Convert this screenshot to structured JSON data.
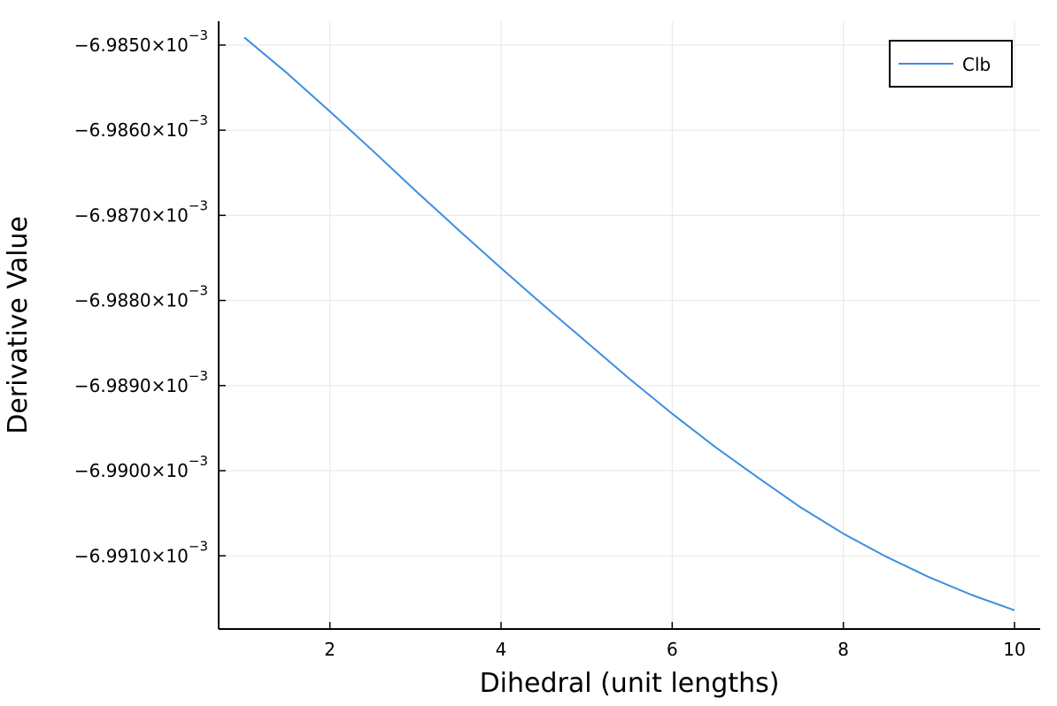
{
  "chart_data": {
    "type": "line",
    "title": "",
    "xlabel": "Dihedral (unit lengths)",
    "ylabel": "Derivative Value",
    "xlim": [
      0.7,
      10.3
    ],
    "ylim": [
      -6.99186,
      -6.98472
    ],
    "y_scale_exponent": -3,
    "xticks": [
      {
        "value": 2,
        "label": "2"
      },
      {
        "value": 4,
        "label": "4"
      },
      {
        "value": 6,
        "label": "6"
      },
      {
        "value": 8,
        "label": "8"
      },
      {
        "value": 10,
        "label": "10"
      }
    ],
    "yticks": [
      {
        "value": -6.985,
        "mantissa": "−6.9850×10",
        "exponent": "−3"
      },
      {
        "value": -6.986,
        "mantissa": "−6.9860×10",
        "exponent": "−3"
      },
      {
        "value": -6.987,
        "mantissa": "−6.9870×10",
        "exponent": "−3"
      },
      {
        "value": -6.988,
        "mantissa": "−6.9880×10",
        "exponent": "−3"
      },
      {
        "value": -6.989,
        "mantissa": "−6.9890×10",
        "exponent": "−3"
      },
      {
        "value": -6.99,
        "mantissa": "−6.9900×10",
        "exponent": "−3"
      },
      {
        "value": -6.991,
        "mantissa": "−6.9910×10",
        "exponent": "−3"
      }
    ],
    "grid": true,
    "legend_position": "top-right",
    "series": [
      {
        "name": "Clb",
        "color": "#3d8fe0",
        "x": [
          1.0,
          1.5,
          2.0,
          2.5,
          3.0,
          3.5,
          4.0,
          4.5,
          5.0,
          5.5,
          6.0,
          6.5,
          7.0,
          7.5,
          8.0,
          8.5,
          9.0,
          9.5,
          10.0
        ],
        "y": [
          -6.98491,
          -6.98533,
          -6.98578,
          -6.98624,
          -6.98671,
          -6.98717,
          -6.98762,
          -6.98806,
          -6.98849,
          -6.98892,
          -6.98933,
          -6.98972,
          -6.99008,
          -6.99043,
          -6.99074,
          -6.99101,
          -6.99125,
          -6.99146,
          -6.99164
        ]
      }
    ]
  }
}
